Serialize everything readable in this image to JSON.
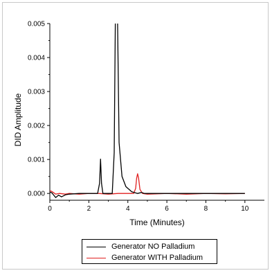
{
  "chart_data": {
    "type": "line",
    "xlabel": "Time (Minutes)",
    "ylabel": "DID Amplitude",
    "xlim": [
      0,
      11
    ],
    "ylim": [
      -0.0002,
      0.005
    ],
    "xticks": [
      "0",
      "2",
      "4",
      "6",
      "8",
      "10"
    ],
    "yticks": [
      "0.000",
      "0.001",
      "0.002",
      "0.003",
      "0.004",
      "0.005"
    ],
    "legend_position": "bottom",
    "series": [
      {
        "name": "Generator NO Palladium",
        "color": "#000000",
        "points": [
          [
            0.0,
            4e-05
          ],
          [
            0.1,
            2e-05
          ],
          [
            0.2,
            -5e-05
          ],
          [
            0.3,
            -0.00012
          ],
          [
            0.45,
            -5e-05
          ],
          [
            0.6,
            -0.0001
          ],
          [
            0.8,
            -4e-05
          ],
          [
            1.0,
            -2e-05
          ],
          [
            1.5,
            0.0
          ],
          [
            2.0,
            0.0
          ],
          [
            2.45,
            0.0
          ],
          [
            2.55,
            0.0003
          ],
          [
            2.6,
            0.00101
          ],
          [
            2.65,
            0.0003
          ],
          [
            2.72,
            0.0
          ],
          [
            3.0,
            0.0
          ],
          [
            3.2,
            0.0
          ],
          [
            3.3,
            0.0012
          ],
          [
            3.36,
            0.0052
          ],
          [
            3.42,
            0.0052
          ],
          [
            3.47,
            0.0052
          ],
          [
            3.55,
            0.0015
          ],
          [
            3.7,
            0.0005
          ],
          [
            3.9,
            0.0002
          ],
          [
            4.2,
            5e-05
          ],
          [
            4.5,
            0.0
          ],
          [
            4.7,
            3e-05
          ],
          [
            4.85,
            0.0
          ],
          [
            6.0,
            0.0
          ],
          [
            8.0,
            0.0
          ],
          [
            10.0,
            0.0
          ]
        ]
      },
      {
        "name": "Generator WITH Palladium",
        "color": "#e02020",
        "points": [
          [
            0.0,
            8e-05
          ],
          [
            0.1,
            6e-05
          ],
          [
            0.2,
            2e-05
          ],
          [
            0.3,
            -2e-05
          ],
          [
            0.5,
            0.0
          ],
          [
            0.8,
            -2e-05
          ],
          [
            1.0,
            0.0
          ],
          [
            1.5,
            -2e-05
          ],
          [
            2.0,
            0.0
          ],
          [
            2.5,
            0.0
          ],
          [
            3.0,
            -2e-05
          ],
          [
            3.5,
            0.0
          ],
          [
            4.0,
            0.0
          ],
          [
            4.3,
            0.0
          ],
          [
            4.4,
            0.00015
          ],
          [
            4.45,
            0.00045
          ],
          [
            4.5,
            0.00058
          ],
          [
            4.55,
            0.00045
          ],
          [
            4.62,
            0.00012
          ],
          [
            4.75,
            0.0
          ],
          [
            5.0,
            -2e-05
          ],
          [
            6.0,
            0.0
          ],
          [
            7.0,
            -2e-05
          ],
          [
            8.0,
            0.0
          ],
          [
            9.0,
            -1e-05
          ],
          [
            10.0,
            0.0
          ]
        ]
      }
    ]
  }
}
